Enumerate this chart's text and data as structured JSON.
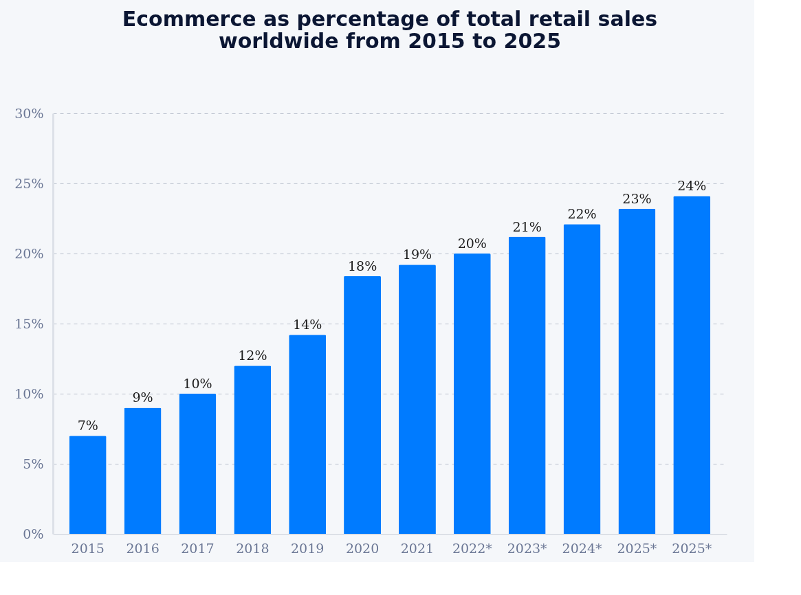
{
  "chart_data": {
    "type": "bar",
    "title": [
      "Ecommerce as percentage of total retail sales",
      "worldwide from 2015 to 2025"
    ],
    "categories": [
      "2015",
      "2016",
      "2017",
      "2018",
      "2019",
      "2020",
      "2021",
      "2022*",
      "2023*",
      "2024*",
      "2025*",
      "2025*"
    ],
    "values": [
      7.0,
      9.0,
      10.0,
      12.0,
      14.2,
      18.4,
      19.2,
      20.0,
      21.2,
      22.1,
      23.2,
      24.1
    ],
    "value_labels": [
      "7%",
      "9%",
      "10%",
      "12%",
      "14%",
      "18%",
      "19%",
      "20%",
      "21%",
      "22%",
      "23%",
      "24%"
    ],
    "color": "#007bff",
    "ylim": [
      0,
      30
    ],
    "yticks": [
      {
        "value": 0,
        "label": "0%"
      },
      {
        "value": 5,
        "label": "5%"
      },
      {
        "value": 10,
        "label": "10%"
      },
      {
        "value": 15,
        "label": "15%"
      },
      {
        "value": 20,
        "label": "20%"
      },
      {
        "value": 25,
        "label": "25%"
      },
      {
        "value": 30,
        "label": "30%"
      }
    ],
    "grid": "y"
  }
}
